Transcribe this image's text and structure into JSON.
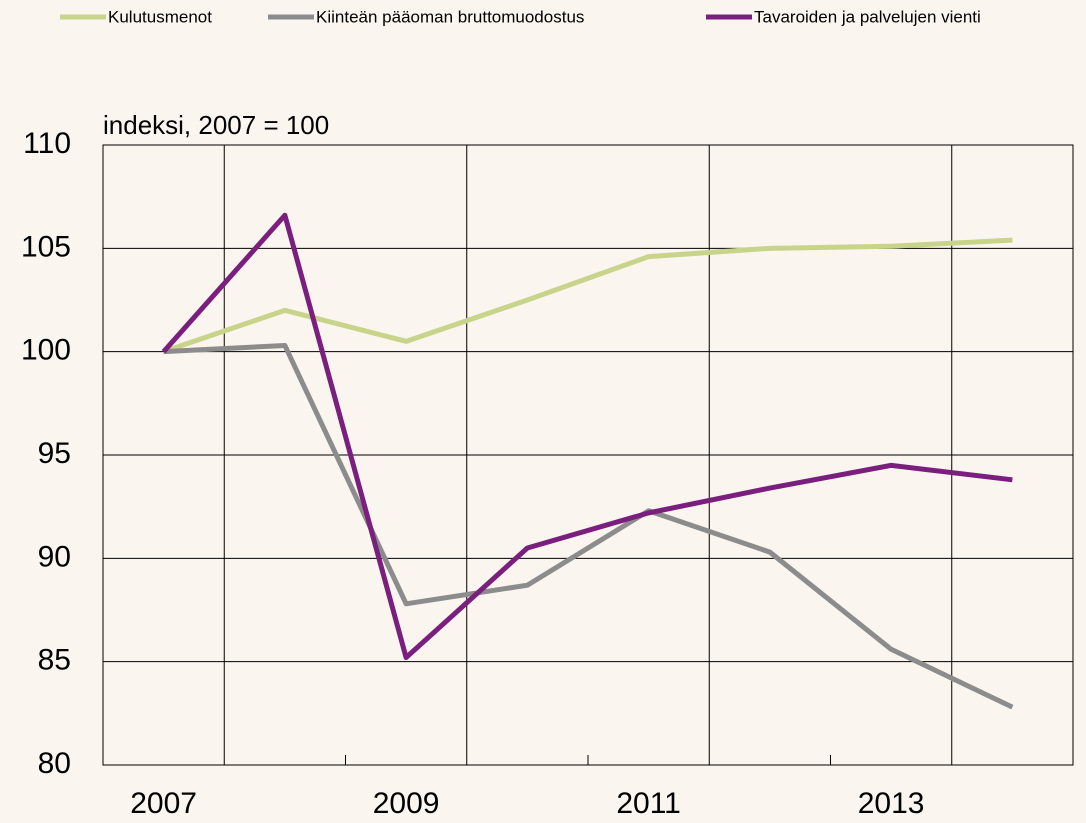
{
  "chart_data": {
    "type": "line",
    "y_label": "indeksi, 2007 = 100",
    "categories": [
      "2007",
      null,
      "2009",
      null,
      "2011",
      null,
      "2013",
      null
    ],
    "series": [
      {
        "name": "Kulutusmenot",
        "color": "#c8d48a",
        "values": [
          100,
          102.0,
          100.5,
          102.5,
          104.6,
          105.0,
          105.1,
          105.4
        ]
      },
      {
        "name": "Kiinteän pääoman bruttomuodostus",
        "color": "#8c8c8c",
        "values": [
          100,
          100.3,
          87.8,
          88.7,
          92.3,
          90.3,
          85.6,
          82.8
        ]
      },
      {
        "name": "Tavaroiden ja palvelujen vienti",
        "color": "#7b1f7e",
        "values": [
          100,
          106.6,
          85.2,
          90.5,
          92.2,
          93.4,
          94.5,
          93.8
        ]
      }
    ],
    "ylim": [
      80,
      110
    ],
    "yticks": [
      80,
      85,
      90,
      95,
      100,
      105,
      110
    ],
    "grid": true,
    "legend": "top"
  }
}
